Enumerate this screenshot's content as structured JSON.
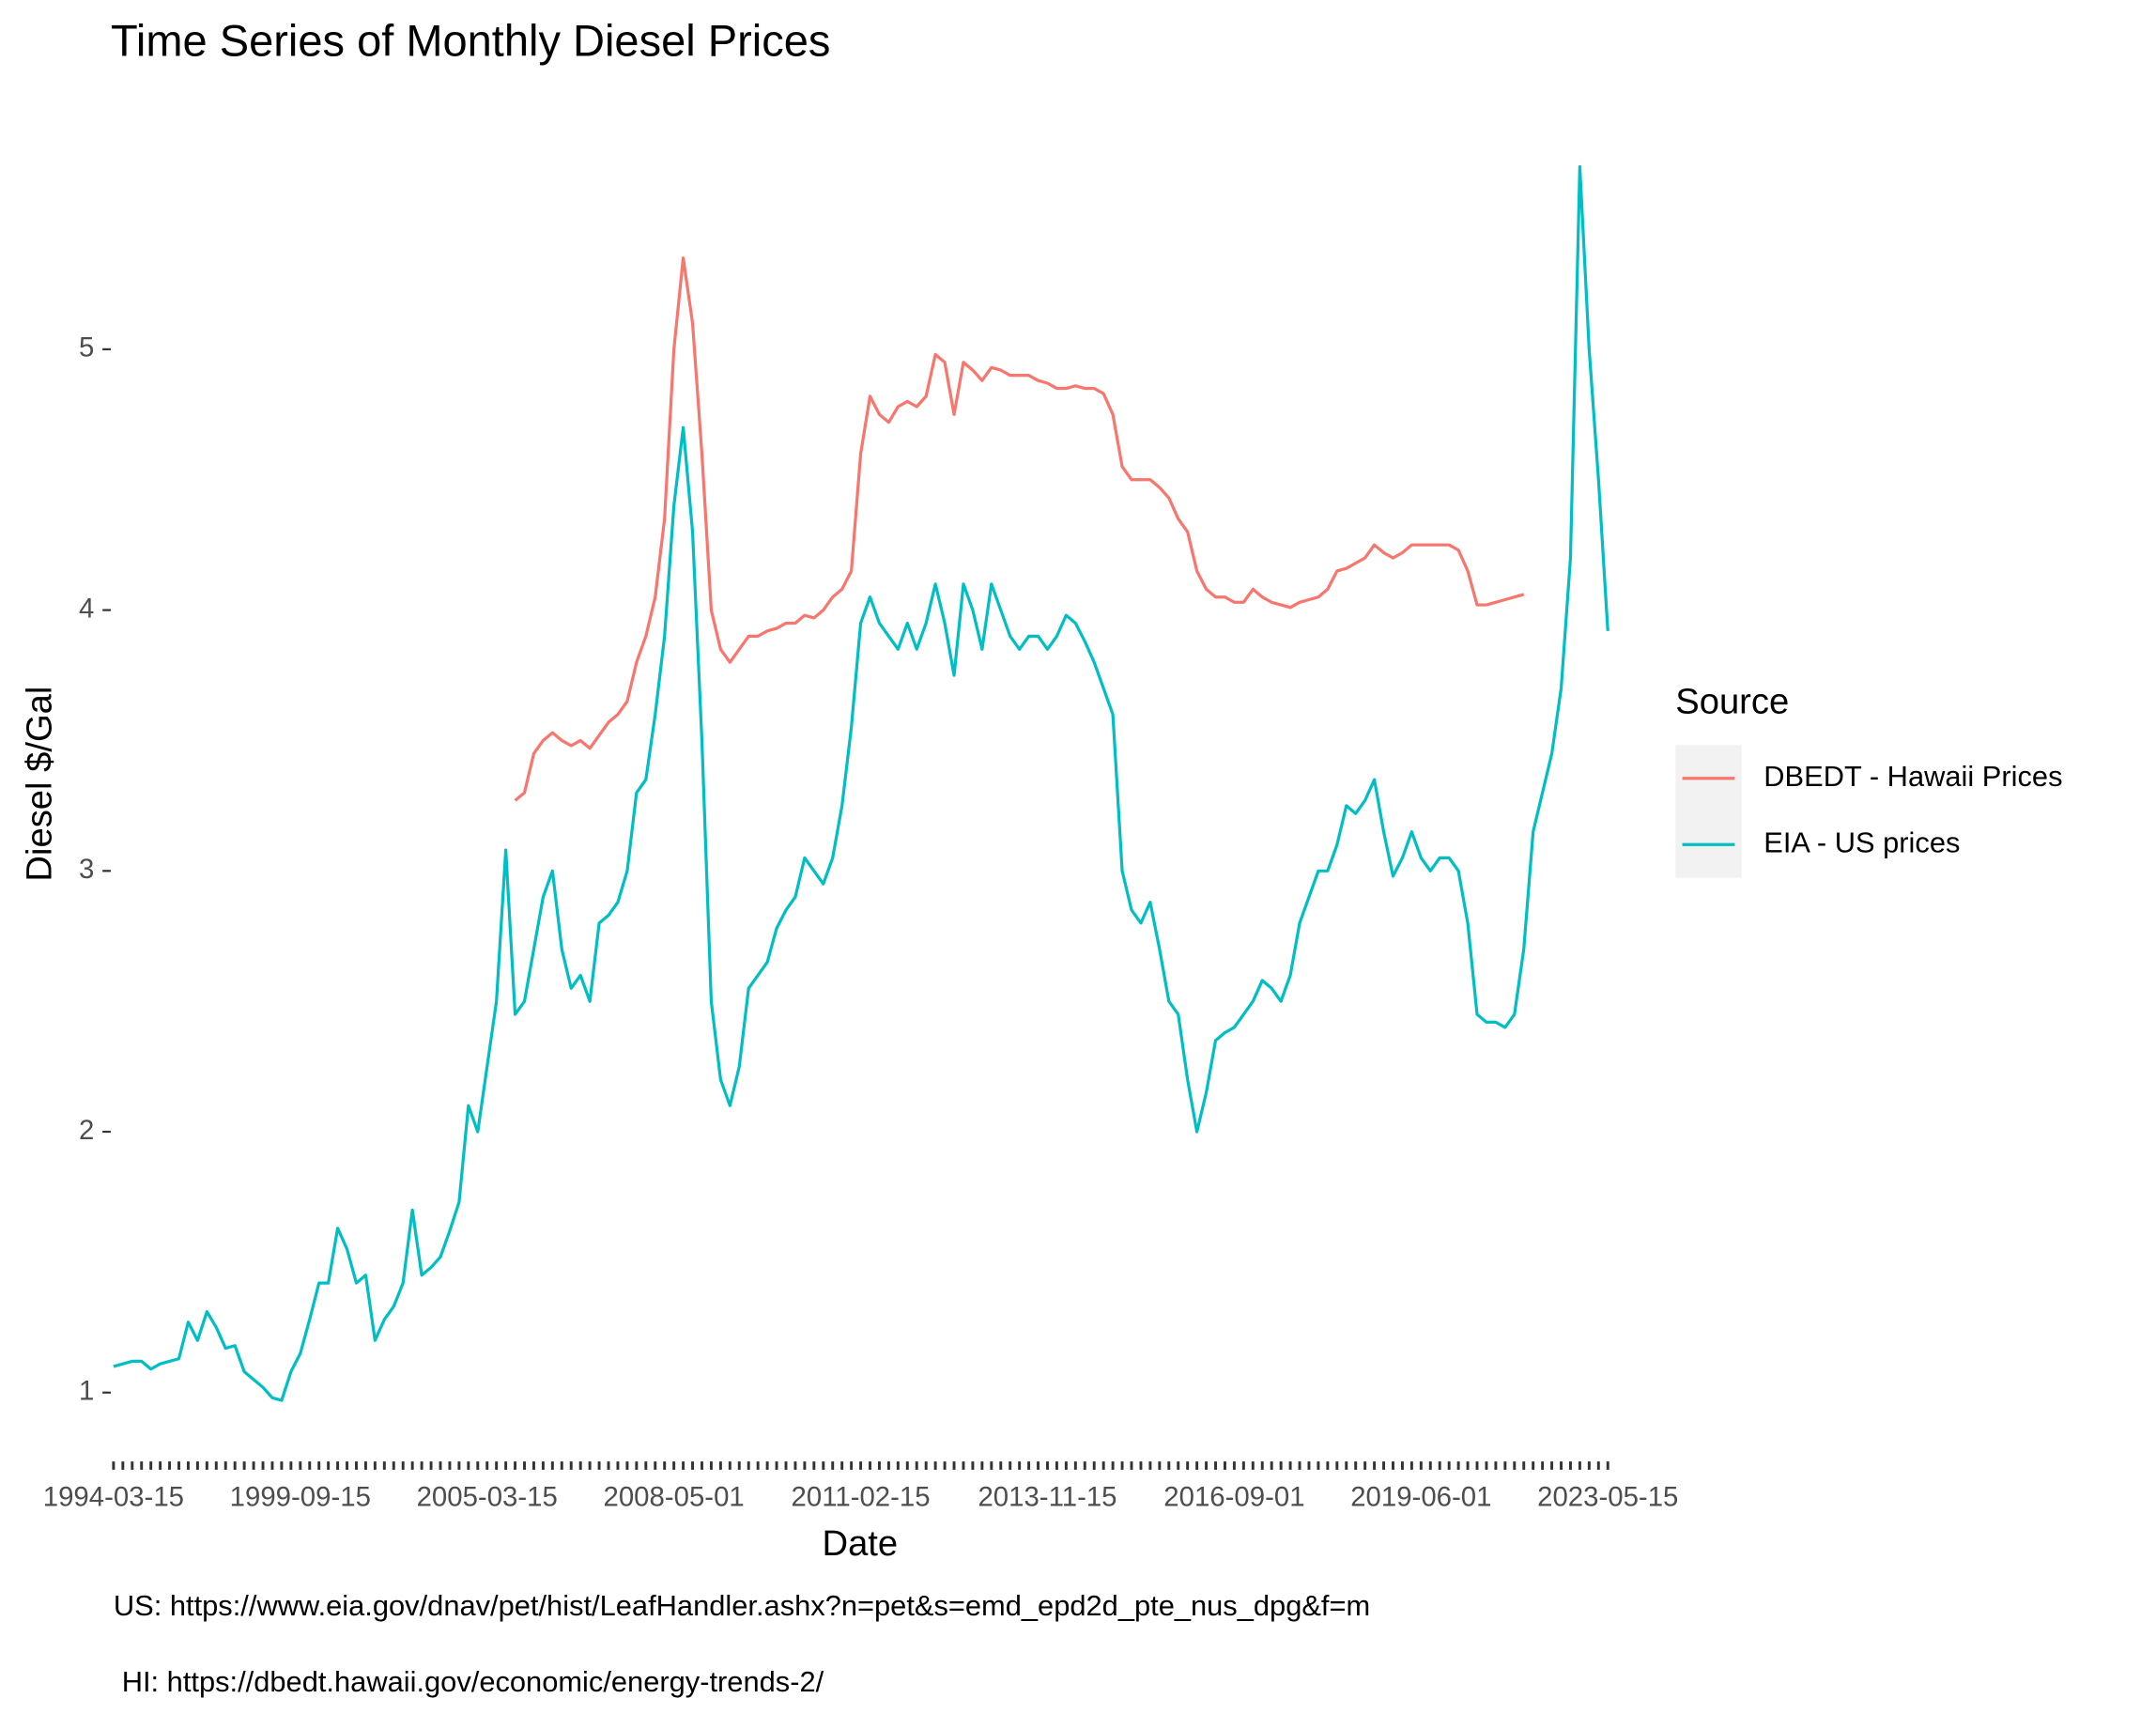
{
  "chart_data": {
    "type": "line",
    "title": "Time Series of Monthly Diesel Prices",
    "x_label": "Date",
    "y_label": "Diesel $/Gal",
    "captions": [
      "US: https://www.eia.gov/dnav/pet/hist/LeafHandler.ashx?n=pet&s=emd_epd2d_pte_nus_dpg&f=m",
      "HI: https://dbedt.hawaii.gov/economic/energy-trends-2/"
    ],
    "legend_title": "Source",
    "legend_position": "right",
    "categories": [
      "1994-03-15",
      null,
      null,
      null,
      null,
      null,
      null,
      null,
      null,
      null,
      null,
      null,
      null,
      null,
      null,
      null,
      null,
      null,
      null,
      null,
      "1999-09-15",
      null,
      null,
      null,
      null,
      null,
      null,
      null,
      null,
      null,
      null,
      null,
      null,
      null,
      null,
      null,
      null,
      null,
      null,
      null,
      "2005-03-15",
      null,
      null,
      null,
      null,
      null,
      null,
      null,
      null,
      null,
      null,
      null,
      null,
      null,
      null,
      null,
      null,
      null,
      null,
      null,
      "2008-05-01",
      null,
      null,
      null,
      null,
      null,
      null,
      null,
      null,
      null,
      null,
      null,
      null,
      null,
      null,
      null,
      null,
      null,
      null,
      null,
      "2011-02-15",
      null,
      null,
      null,
      null,
      null,
      null,
      null,
      null,
      null,
      null,
      null,
      null,
      null,
      null,
      null,
      null,
      null,
      null,
      null,
      "2013-11-15",
      null,
      null,
      null,
      null,
      null,
      null,
      null,
      null,
      null,
      null,
      null,
      null,
      null,
      null,
      null,
      null,
      null,
      null,
      null,
      "2016-09-01",
      null,
      null,
      null,
      null,
      null,
      null,
      null,
      null,
      null,
      null,
      null,
      null,
      null,
      null,
      null,
      null,
      null,
      null,
      null,
      "2019-06-01",
      null,
      null,
      null,
      null,
      null,
      null,
      null,
      null,
      null,
      null,
      null,
      null,
      null,
      null,
      null,
      null,
      null,
      null,
      null,
      "2023-05-15"
    ],
    "series": [
      {
        "name": "DBEDT - Hawaii Prices",
        "color": "#F8766D",
        "values": [
          null,
          null,
          null,
          null,
          null,
          null,
          null,
          null,
          null,
          null,
          null,
          null,
          null,
          null,
          null,
          null,
          null,
          null,
          null,
          null,
          null,
          null,
          null,
          null,
          null,
          null,
          null,
          null,
          null,
          null,
          null,
          null,
          null,
          null,
          null,
          null,
          null,
          null,
          null,
          null,
          null,
          null,
          null,
          3.27,
          3.3,
          3.45,
          3.5,
          3.53,
          3.5,
          3.48,
          3.5,
          3.47,
          3.52,
          3.57,
          3.6,
          3.65,
          3.8,
          3.9,
          4.05,
          4.35,
          5.0,
          5.35,
          5.1,
          4.6,
          4.0,
          3.85,
          3.8,
          3.85,
          3.9,
          3.9,
          3.92,
          3.93,
          3.95,
          3.95,
          3.98,
          3.97,
          4.0,
          4.05,
          4.08,
          4.15,
          4.6,
          4.82,
          4.75,
          4.72,
          4.78,
          4.8,
          4.78,
          4.82,
          4.98,
          4.95,
          4.75,
          4.95,
          4.92,
          4.88,
          4.93,
          4.92,
          4.9,
          4.9,
          4.9,
          4.88,
          4.87,
          4.85,
          4.85,
          4.86,
          4.85,
          4.85,
          4.83,
          4.75,
          4.55,
          4.5,
          4.5,
          4.5,
          4.47,
          4.43,
          4.35,
          4.3,
          4.15,
          4.08,
          4.05,
          4.05,
          4.03,
          4.03,
          4.08,
          4.05,
          4.03,
          4.02,
          4.01,
          4.03,
          4.04,
          4.05,
          4.08,
          4.15,
          4.16,
          4.18,
          4.2,
          4.25,
          4.22,
          4.2,
          4.22,
          4.25,
          4.25,
          4.25,
          4.25,
          4.25,
          4.23,
          4.15,
          4.02,
          4.02,
          4.03,
          4.04,
          4.05,
          4.06,
          null,
          null,
          null,
          null,
          null,
          null,
          null,
          null,
          null
        ]
      },
      {
        "name": "EIA - US prices",
        "color": "#00BFC4",
        "values": [
          1.1,
          1.11,
          1.12,
          1.12,
          1.09,
          1.11,
          1.12,
          1.13,
          1.27,
          1.2,
          1.31,
          1.25,
          1.17,
          1.18,
          1.08,
          1.05,
          1.02,
          0.98,
          0.97,
          1.08,
          1.15,
          1.28,
          1.42,
          1.42,
          1.63,
          1.55,
          1.42,
          1.45,
          1.2,
          1.28,
          1.33,
          1.42,
          1.7,
          1.45,
          1.48,
          1.52,
          1.62,
          1.73,
          2.1,
          2.0,
          2.25,
          2.5,
          3.08,
          2.45,
          2.5,
          2.7,
          2.9,
          3.0,
          2.7,
          2.55,
          2.6,
          2.5,
          2.8,
          2.83,
          2.88,
          3.0,
          3.3,
          3.35,
          3.6,
          3.9,
          4.4,
          4.7,
          4.3,
          3.5,
          2.5,
          2.2,
          2.1,
          2.25,
          2.55,
          2.6,
          2.65,
          2.78,
          2.85,
          2.9,
          3.05,
          3.0,
          2.95,
          3.05,
          3.25,
          3.55,
          3.95,
          4.05,
          3.95,
          3.9,
          3.85,
          3.95,
          3.85,
          3.95,
          4.1,
          3.95,
          3.75,
          4.1,
          4.0,
          3.85,
          4.1,
          4.0,
          3.9,
          3.85,
          3.9,
          3.9,
          3.85,
          3.9,
          3.98,
          3.95,
          3.88,
          3.8,
          3.7,
          3.6,
          3.0,
          2.85,
          2.8,
          2.88,
          2.7,
          2.5,
          2.45,
          2.2,
          2.0,
          2.15,
          2.35,
          2.38,
          2.4,
          2.45,
          2.5,
          2.58,
          2.55,
          2.5,
          2.6,
          2.8,
          2.9,
          3.0,
          3.0,
          3.1,
          3.25,
          3.22,
          3.27,
          3.35,
          3.15,
          2.98,
          3.05,
          3.15,
          3.05,
          3.0,
          3.05,
          3.05,
          3.0,
          2.8,
          2.45,
          2.42,
          2.42,
          2.4,
          2.45,
          2.7,
          3.15,
          3.3,
          3.45,
          3.7,
          4.2,
          5.7,
          5.0,
          4.5,
          3.92
        ]
      }
    ],
    "ylim": [
      0.72,
      5.81
    ],
    "yticks": [
      1,
      2,
      3,
      4,
      5
    ],
    "grid": false
  }
}
